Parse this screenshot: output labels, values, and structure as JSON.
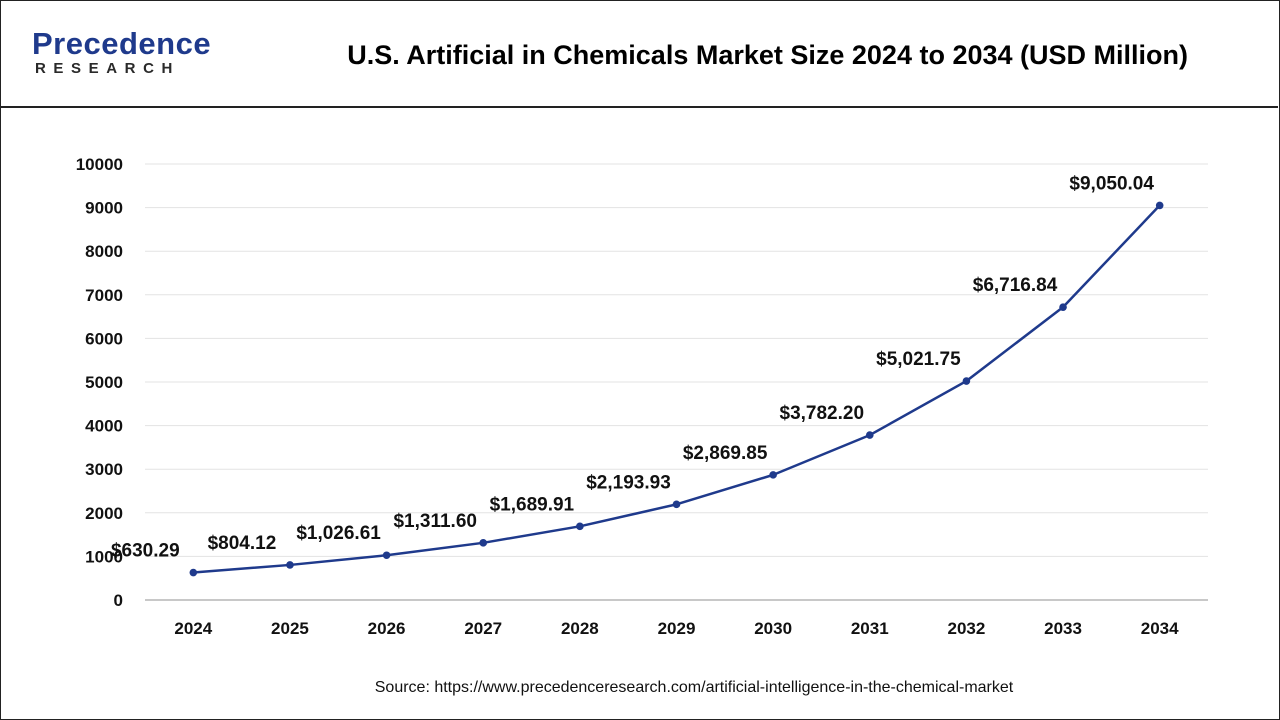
{
  "brand": {
    "name_main": "Precedence",
    "name_sub": "RESEARCH",
    "color": "#1f3a8c"
  },
  "header": {
    "title": "U.S. Artificial in Chemicals Market Size 2024 to 2034 (USD Million)"
  },
  "source_text": "Source: https://www.precedenceresearch.com/artificial-intelligence-in-the-chemical-market",
  "chart_data": {
    "type": "line",
    "title": "U.S. Artificial in Chemicals Market Size 2024 to 2034 (USD Million)",
    "xlabel": "",
    "ylabel": "",
    "categories": [
      "2024",
      "2025",
      "2026",
      "2027",
      "2028",
      "2029",
      "2030",
      "2031",
      "2032",
      "2033",
      "2034"
    ],
    "series": [
      {
        "values": [
          630.29,
          804.12,
          1026.61,
          1311.6,
          1689.91,
          2193.93,
          2869.85,
          3782.2,
          5021.75,
          6716.84,
          9050.04
        ],
        "labels": [
          "$630.29",
          "$804.12",
          "$1,026.61",
          "$1,311.60",
          "$1,689.91",
          "$2,193.93",
          "$2,869.85",
          "$3,782.20",
          "$5,021.75",
          "$6,716.84",
          "$9,050.04"
        ],
        "color": "#1f3a8c"
      }
    ],
    "ylim": [
      0,
      10000
    ],
    "yticks": [
      "0",
      "1000",
      "2000",
      "3000",
      "4000",
      "5000",
      "6000",
      "7000",
      "8000",
      "9000",
      "10000"
    ],
    "grid": true,
    "legend": "none"
  }
}
